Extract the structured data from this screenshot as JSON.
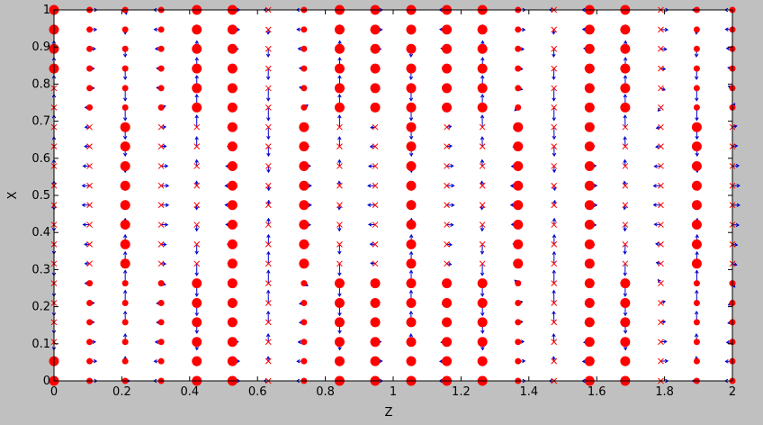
{
  "chart_data": {
    "type": "scatter",
    "title": "",
    "xlabel": "Z",
    "ylabel": "X",
    "xlim": [
      0,
      2
    ],
    "ylim": [
      0,
      1
    ],
    "xticks": [
      "0",
      "0.2",
      "0.4",
      "0.6",
      "0.8",
      "1",
      "1.2",
      "1.4",
      "1.6",
      "1.8",
      "2"
    ],
    "yticks": [
      "0",
      "0.1",
      "0.2",
      "0.3",
      "0.4",
      "0.5",
      "0.6",
      "0.7",
      "0.8",
      "0.9",
      "1"
    ],
    "grid": false,
    "legend": "none",
    "colors": {
      "markers": "#ff0000",
      "arrows": "#0000cc",
      "axes_bg": "#ffffff",
      "figure_bg": "#c0c0c0"
    },
    "grid_z": [
      0,
      0.105,
      0.21,
      0.316,
      0.421,
      0.526,
      0.632,
      0.737,
      0.842,
      0.947,
      1.053,
      1.158,
      1.263,
      1.368,
      1.474,
      1.579,
      1.684,
      1.789,
      1.895,
      2
    ],
    "grid_x": [
      0,
      0.053,
      0.105,
      0.158,
      0.21,
      0.263,
      0.316,
      0.368,
      0.421,
      0.474,
      0.526,
      0.579,
      0.632,
      0.684,
      0.737,
      0.789,
      0.842,
      0.895,
      0.947,
      1
    ],
    "column_pattern": [
      "dx",
      "cx",
      "cb",
      "cx",
      "bx",
      "bb",
      "x",
      "cb",
      "bx",
      "bx",
      "bb",
      "bx",
      "bx",
      "cb",
      "x",
      "bb",
      "bx",
      "x",
      "cb",
      "cx"
    ],
    "marker_legend": {
      "b": "large red dot",
      "c": "small red dot",
      "x": "red cross",
      "d": "red dot at edges"
    },
    "flow_field": "blue arrows at every grid point indicating local velocity direction"
  }
}
